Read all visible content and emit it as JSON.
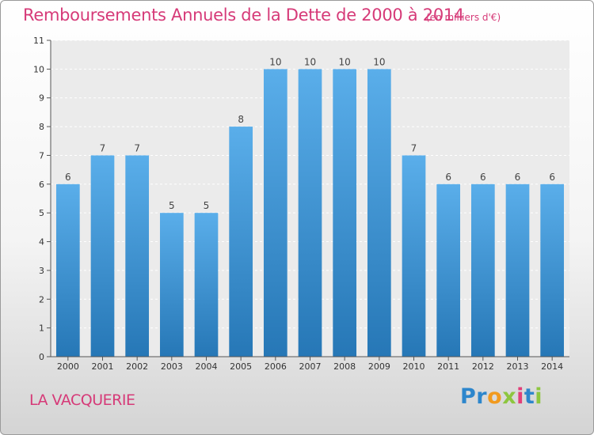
{
  "header": {
    "title": "Remboursements Annuels de la Dette de 2000 à 2014",
    "unit": "(en milliers d'€)"
  },
  "footer": {
    "place": "LA VACQUERIE",
    "logo_letters": [
      "P",
      "r",
      "o",
      "x",
      "i",
      "t",
      "i"
    ],
    "logo_colors": [
      "#2d86cc",
      "#2d86cc",
      "#f19a1e",
      "#8dc63f",
      "#e23f79",
      "#2d86cc",
      "#8dc63f"
    ]
  },
  "chart_data": {
    "type": "bar",
    "categories": [
      "2000",
      "2001",
      "2002",
      "2003",
      "2004",
      "2005",
      "2006",
      "2007",
      "2008",
      "2009",
      "2010",
      "2011",
      "2012",
      "2013",
      "2014"
    ],
    "values": [
      6,
      7,
      7,
      5,
      5,
      8,
      10,
      10,
      10,
      10,
      7,
      6,
      6,
      6,
      6
    ],
    "ylim": [
      0,
      11
    ],
    "yticks": [
      0,
      1,
      2,
      3,
      4,
      5,
      6,
      7,
      8,
      9,
      10,
      11
    ],
    "grid": true,
    "bar_color_top": "#5aaeea",
    "bar_color_bottom": "#2677b6",
    "title": "Remboursements Annuels de la Dette de 2000 à 2014",
    "xlabel": "",
    "ylabel": ""
  }
}
